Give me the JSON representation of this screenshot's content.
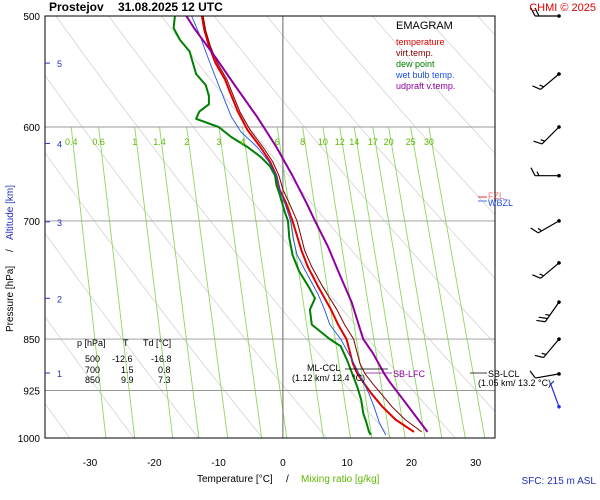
{
  "header": {
    "station": "Prostejov",
    "datetime": "31.08.2025 12 UTC",
    "credit": "CHMI © 2025"
  },
  "legend": {
    "title": "EMAGRAM",
    "items": [
      {
        "label": "temperature",
        "color": "#e00000"
      },
      {
        "label": "virt.temp.",
        "color": "#800000"
      },
      {
        "label": "dew point",
        "color": "#008000"
      },
      {
        "label": "wet bulb temp.",
        "color": "#2050e0"
      },
      {
        "label": "udpraft v.temp.",
        "color": "#9000a0"
      }
    ]
  },
  "axes": {
    "xlabel_temp": "Temperature [°C]",
    "xlabel_sep": "/",
    "xlabel_mix": "Mixing ratio [g/kg]",
    "ylabel_pressure": "Pressure [hPa]",
    "ylabel_sep": "/",
    "ylabel_altitude": "Altitude [km]",
    "sfc_label": "SFC: 215 m ASL"
  },
  "table": {
    "headers": [
      "p [hPa]",
      "T",
      "Td [°C]"
    ],
    "rows": [
      [
        "500",
        "-12.6",
        "-16.8"
      ],
      [
        "700",
        "1.5",
        "0.8"
      ],
      [
        "850",
        "9.9",
        "7.3"
      ]
    ]
  },
  "annotations": {
    "ml_lcl": "ML-CCL",
    "ml_lcl_sub": "(1.12 km/ 12.4 °C)",
    "sb_lfc": "SB-LFC",
    "sb_lcl": "SB-LCL",
    "sb_lcl_sub": "(1.05 km/ 13.2 °C)",
    "wbzl": "WBZL",
    "fzl": "FZL"
  },
  "chart_data": {
    "type": "line",
    "y_scale": "log-pressure",
    "ylim": [
      1000,
      500
    ],
    "xlim": [
      -37,
      33
    ],
    "pressure_ticks": [
      500,
      600,
      700,
      850,
      925,
      1000
    ],
    "temp_ticks": [
      -30,
      -20,
      -10,
      0,
      10,
      20,
      30
    ],
    "altitude_ticks_km": [
      1,
      2,
      3,
      4,
      5
    ],
    "mixing_ratio_ticks": [
      "0.4",
      "0.6",
      "1",
      "1.4",
      "2",
      "3",
      "4",
      "6",
      "8",
      "10",
      "12",
      "14",
      "17",
      "20",
      "25",
      "30"
    ],
    "mixing_ratio_values": [
      0.4,
      0.6,
      1,
      1.4,
      2,
      3,
      4,
      6,
      8,
      10,
      12,
      14,
      17,
      20,
      25,
      30
    ],
    "grid": true,
    "series": [
      {
        "name": "temperature",
        "color": "#e00000",
        "points": [
          [
            20.4,
            990
          ],
          [
            17.5,
            970
          ],
          [
            15.5,
            950
          ],
          [
            13.8,
            930
          ],
          [
            12.7,
            915
          ],
          [
            11.6,
            900
          ],
          [
            10.9,
            885
          ],
          [
            9.9,
            850
          ],
          [
            8.6,
            830
          ],
          [
            7.5,
            810
          ],
          [
            5.5,
            780
          ],
          [
            3.9,
            755
          ],
          [
            2.9,
            735
          ],
          [
            1.5,
            700
          ],
          [
            0.5,
            680
          ],
          [
            -0.5,
            665
          ],
          [
            -1.0,
            650
          ],
          [
            -2.0,
            635
          ],
          [
            -3.5,
            620
          ],
          [
            -5.5,
            603
          ],
          [
            -7.0,
            585
          ],
          [
            -8.0,
            570
          ],
          [
            -9.0,
            555
          ],
          [
            -10.5,
            540
          ],
          [
            -11.5,
            525
          ],
          [
            -12.2,
            512
          ],
          [
            -12.6,
            500
          ]
        ]
      },
      {
        "name": "virt.temp.",
        "color": "#800000",
        "points": [
          [
            21.6,
            990
          ],
          [
            19.0,
            970
          ],
          [
            17.0,
            950
          ],
          [
            15.3,
            930
          ],
          [
            14.0,
            915
          ],
          [
            12.8,
            900
          ],
          [
            12.0,
            885
          ],
          [
            11.0,
            850
          ],
          [
            9.6,
            830
          ],
          [
            8.4,
            810
          ],
          [
            6.2,
            780
          ],
          [
            4.5,
            755
          ],
          [
            3.4,
            735
          ],
          [
            2.2,
            700
          ],
          [
            1.0,
            680
          ],
          [
            0.0,
            665
          ],
          [
            -0.6,
            650
          ],
          [
            -1.6,
            635
          ],
          [
            -3.1,
            620
          ],
          [
            -5.1,
            603
          ],
          [
            -6.7,
            585
          ],
          [
            -7.7,
            570
          ],
          [
            -8.7,
            555
          ],
          [
            -10.2,
            540
          ],
          [
            -11.3,
            525
          ],
          [
            -12.0,
            512
          ],
          [
            -12.4,
            500
          ]
        ]
      },
      {
        "name": "dew point",
        "color": "#008000",
        "points": [
          [
            13.7,
            995
          ],
          [
            13.4,
            990
          ],
          [
            13.0,
            975
          ],
          [
            12.5,
            960
          ],
          [
            12.2,
            940
          ],
          [
            11.6,
            920
          ],
          [
            10.8,
            900
          ],
          [
            10.0,
            880
          ],
          [
            9.0,
            860
          ],
          [
            7.3,
            850
          ],
          [
            4.5,
            830
          ],
          [
            4.2,
            810
          ],
          [
            5.0,
            795
          ],
          [
            4.0,
            780
          ],
          [
            2.5,
            760
          ],
          [
            1.5,
            740
          ],
          [
            1.0,
            720
          ],
          [
            0.8,
            700
          ],
          [
            0.3,
            690
          ],
          [
            -0.5,
            670
          ],
          [
            -1.0,
            660
          ],
          [
            -1.2,
            650
          ],
          [
            -2.0,
            640
          ],
          [
            -3.5,
            630
          ],
          [
            -5.5,
            620
          ],
          [
            -8.0,
            610
          ],
          [
            -10.0,
            600
          ],
          [
            -13.5,
            592
          ],
          [
            -13.0,
            585
          ],
          [
            -11.5,
            578
          ],
          [
            -11.5,
            570
          ],
          [
            -12.0,
            560
          ],
          [
            -13.5,
            550
          ],
          [
            -14.0,
            540
          ],
          [
            -14.5,
            530
          ],
          [
            -16.0,
            520
          ],
          [
            -17.0,
            510
          ],
          [
            -16.8,
            500
          ]
        ]
      },
      {
        "name": "wet bulb temp.",
        "color": "#2050e0",
        "points": [
          [
            16.0,
            995
          ],
          [
            15.0,
            975
          ],
          [
            14.2,
            950
          ],
          [
            13.4,
            930
          ],
          [
            12.4,
            910
          ],
          [
            11.6,
            895
          ],
          [
            10.8,
            880
          ],
          [
            9.0,
            850
          ],
          [
            7.3,
            830
          ],
          [
            6.5,
            810
          ],
          [
            5.5,
            790
          ],
          [
            3.5,
            760
          ],
          [
            2.2,
            740
          ],
          [
            1.6,
            720
          ],
          [
            1.2,
            700
          ],
          [
            0.3,
            680
          ],
          [
            -0.5,
            665
          ],
          [
            -1.0,
            650
          ],
          [
            -2.2,
            635
          ],
          [
            -4.0,
            620
          ],
          [
            -6.5,
            605
          ],
          [
            -8.0,
            590
          ],
          [
            -9.0,
            575
          ],
          [
            -10.0,
            560
          ],
          [
            -11.0,
            545
          ],
          [
            -12.0,
            530
          ],
          [
            -13.0,
            515
          ],
          [
            -14.2,
            500
          ]
        ]
      },
      {
        "name": "udpraft v.temp.",
        "color": "#9000a0",
        "points": [
          [
            22.5,
            990
          ],
          [
            18.8,
            940
          ],
          [
            16.6,
            912
          ],
          [
            15.8,
            900
          ],
          [
            14.0,
            870
          ],
          [
            12.5,
            850
          ],
          [
            10.7,
            800
          ],
          [
            8.6,
            760
          ],
          [
            7.0,
            730
          ],
          [
            5.0,
            700
          ],
          [
            3.7,
            680
          ],
          [
            1.5,
            650
          ],
          [
            -1.0,
            620
          ],
          [
            -4.0,
            590
          ],
          [
            -7.5,
            560
          ],
          [
            -10.5,
            535
          ],
          [
            -13.8,
            510
          ],
          [
            -15.0,
            500
          ]
        ]
      }
    ],
    "wind_barbs": [
      {
        "pressure": 500,
        "dir_deg": 270,
        "speed_kt": 20
      },
      {
        "pressure": 550,
        "dir_deg": 230,
        "speed_kt": 15
      },
      {
        "pressure": 600,
        "dir_deg": 225,
        "speed_kt": 15
      },
      {
        "pressure": 650,
        "dir_deg": 270,
        "speed_kt": 15
      },
      {
        "pressure": 700,
        "dir_deg": 240,
        "speed_kt": 15
      },
      {
        "pressure": 750,
        "dir_deg": 230,
        "speed_kt": 15
      },
      {
        "pressure": 800,
        "dir_deg": 215,
        "speed_kt": 25
      },
      {
        "pressure": 850,
        "dir_deg": 220,
        "speed_kt": 15
      },
      {
        "pressure": 900,
        "dir_deg": 260,
        "speed_kt": 10
      },
      {
        "pressure": 950,
        "dir_deg": 340,
        "speed_kt": 5
      }
    ]
  }
}
